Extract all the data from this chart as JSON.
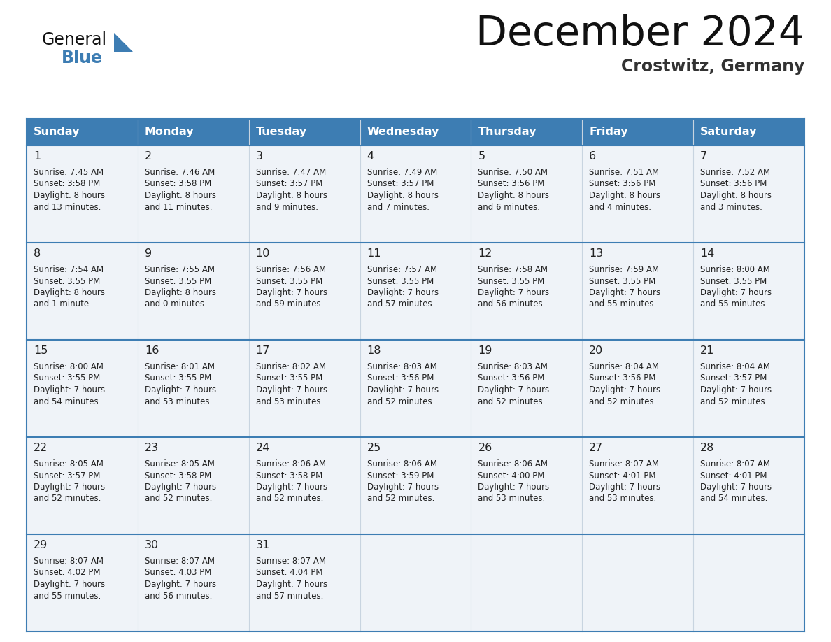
{
  "title": "December 2024",
  "subtitle": "Crostwitz, Germany",
  "header_bg_color": "#3d7db3",
  "header_text_color": "#ffffff",
  "day_names": [
    "Sunday",
    "Monday",
    "Tuesday",
    "Wednesday",
    "Thursday",
    "Friday",
    "Saturday"
  ],
  "row_bg": "#eff3f8",
  "grid_color": "#3d7db3",
  "cell_text_color": "#222222",
  "title_color": "#111111",
  "subtitle_color": "#333333",
  "logo_general_color": "#111111",
  "logo_blue_color": "#3d7db3",
  "logo_triangle_color": "#3d7db3",
  "days": [
    {
      "day": 1,
      "col": 0,
      "row": 0,
      "sunrise": "7:45 AM",
      "sunset": "3:58 PM",
      "daylight": "8 hours and 13 minutes."
    },
    {
      "day": 2,
      "col": 1,
      "row": 0,
      "sunrise": "7:46 AM",
      "sunset": "3:58 PM",
      "daylight": "8 hours and 11 minutes."
    },
    {
      "day": 3,
      "col": 2,
      "row": 0,
      "sunrise": "7:47 AM",
      "sunset": "3:57 PM",
      "daylight": "8 hours and 9 minutes."
    },
    {
      "day": 4,
      "col": 3,
      "row": 0,
      "sunrise": "7:49 AM",
      "sunset": "3:57 PM",
      "daylight": "8 hours and 7 minutes."
    },
    {
      "day": 5,
      "col": 4,
      "row": 0,
      "sunrise": "7:50 AM",
      "sunset": "3:56 PM",
      "daylight": "8 hours and 6 minutes."
    },
    {
      "day": 6,
      "col": 5,
      "row": 0,
      "sunrise": "7:51 AM",
      "sunset": "3:56 PM",
      "daylight": "8 hours and 4 minutes."
    },
    {
      "day": 7,
      "col": 6,
      "row": 0,
      "sunrise": "7:52 AM",
      "sunset": "3:56 PM",
      "daylight": "8 hours and 3 minutes."
    },
    {
      "day": 8,
      "col": 0,
      "row": 1,
      "sunrise": "7:54 AM",
      "sunset": "3:55 PM",
      "daylight": "8 hours and 1 minute."
    },
    {
      "day": 9,
      "col": 1,
      "row": 1,
      "sunrise": "7:55 AM",
      "sunset": "3:55 PM",
      "daylight": "8 hours and 0 minutes."
    },
    {
      "day": 10,
      "col": 2,
      "row": 1,
      "sunrise": "7:56 AM",
      "sunset": "3:55 PM",
      "daylight": "7 hours and 59 minutes."
    },
    {
      "day": 11,
      "col": 3,
      "row": 1,
      "sunrise": "7:57 AM",
      "sunset": "3:55 PM",
      "daylight": "7 hours and 57 minutes."
    },
    {
      "day": 12,
      "col": 4,
      "row": 1,
      "sunrise": "7:58 AM",
      "sunset": "3:55 PM",
      "daylight": "7 hours and 56 minutes."
    },
    {
      "day": 13,
      "col": 5,
      "row": 1,
      "sunrise": "7:59 AM",
      "sunset": "3:55 PM",
      "daylight": "7 hours and 55 minutes."
    },
    {
      "day": 14,
      "col": 6,
      "row": 1,
      "sunrise": "8:00 AM",
      "sunset": "3:55 PM",
      "daylight": "7 hours and 55 minutes."
    },
    {
      "day": 15,
      "col": 0,
      "row": 2,
      "sunrise": "8:00 AM",
      "sunset": "3:55 PM",
      "daylight": "7 hours and 54 minutes."
    },
    {
      "day": 16,
      "col": 1,
      "row": 2,
      "sunrise": "8:01 AM",
      "sunset": "3:55 PM",
      "daylight": "7 hours and 53 minutes."
    },
    {
      "day": 17,
      "col": 2,
      "row": 2,
      "sunrise": "8:02 AM",
      "sunset": "3:55 PM",
      "daylight": "7 hours and 53 minutes."
    },
    {
      "day": 18,
      "col": 3,
      "row": 2,
      "sunrise": "8:03 AM",
      "sunset": "3:56 PM",
      "daylight": "7 hours and 52 minutes."
    },
    {
      "day": 19,
      "col": 4,
      "row": 2,
      "sunrise": "8:03 AM",
      "sunset": "3:56 PM",
      "daylight": "7 hours and 52 minutes."
    },
    {
      "day": 20,
      "col": 5,
      "row": 2,
      "sunrise": "8:04 AM",
      "sunset": "3:56 PM",
      "daylight": "7 hours and 52 minutes."
    },
    {
      "day": 21,
      "col": 6,
      "row": 2,
      "sunrise": "8:04 AM",
      "sunset": "3:57 PM",
      "daylight": "7 hours and 52 minutes."
    },
    {
      "day": 22,
      "col": 0,
      "row": 3,
      "sunrise": "8:05 AM",
      "sunset": "3:57 PM",
      "daylight": "7 hours and 52 minutes."
    },
    {
      "day": 23,
      "col": 1,
      "row": 3,
      "sunrise": "8:05 AM",
      "sunset": "3:58 PM",
      "daylight": "7 hours and 52 minutes."
    },
    {
      "day": 24,
      "col": 2,
      "row": 3,
      "sunrise": "8:06 AM",
      "sunset": "3:58 PM",
      "daylight": "7 hours and 52 minutes."
    },
    {
      "day": 25,
      "col": 3,
      "row": 3,
      "sunrise": "8:06 AM",
      "sunset": "3:59 PM",
      "daylight": "7 hours and 52 minutes."
    },
    {
      "day": 26,
      "col": 4,
      "row": 3,
      "sunrise": "8:06 AM",
      "sunset": "4:00 PM",
      "daylight": "7 hours and 53 minutes."
    },
    {
      "day": 27,
      "col": 5,
      "row": 3,
      "sunrise": "8:07 AM",
      "sunset": "4:01 PM",
      "daylight": "7 hours and 53 minutes."
    },
    {
      "day": 28,
      "col": 6,
      "row": 3,
      "sunrise": "8:07 AM",
      "sunset": "4:01 PM",
      "daylight": "7 hours and 54 minutes."
    },
    {
      "day": 29,
      "col": 0,
      "row": 4,
      "sunrise": "8:07 AM",
      "sunset": "4:02 PM",
      "daylight": "7 hours and 55 minutes."
    },
    {
      "day": 30,
      "col": 1,
      "row": 4,
      "sunrise": "8:07 AM",
      "sunset": "4:03 PM",
      "daylight": "7 hours and 56 minutes."
    },
    {
      "day": 31,
      "col": 2,
      "row": 4,
      "sunrise": "8:07 AM",
      "sunset": "4:04 PM",
      "daylight": "7 hours and 57 minutes."
    }
  ]
}
